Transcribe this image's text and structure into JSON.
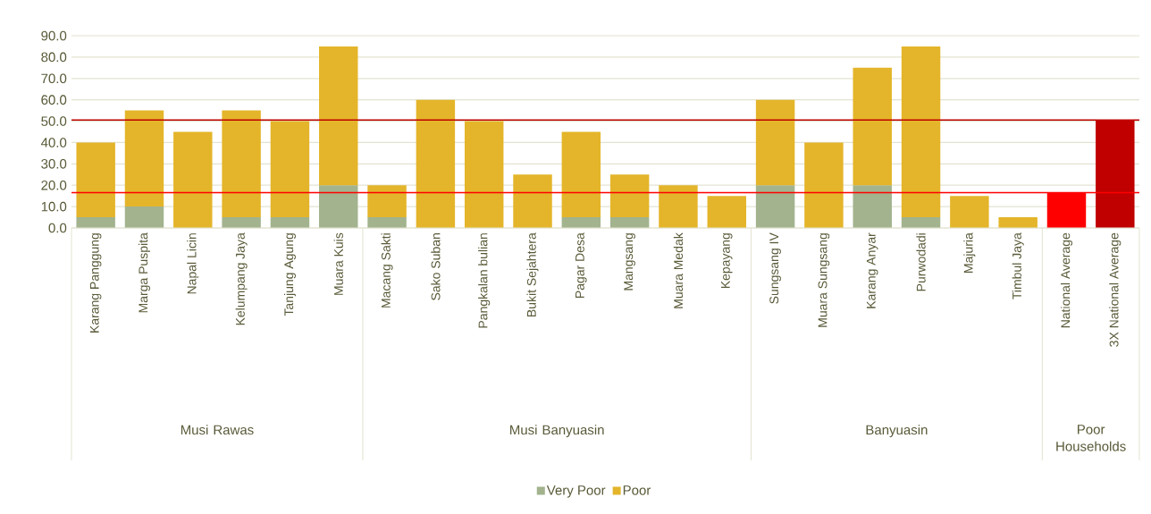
{
  "chart_data": {
    "type": "bar",
    "stacked": true,
    "categories": [
      "Karang Panggung",
      "Marga Puspita",
      "Napal Licin",
      "Kelumpang Jaya",
      "Tanjung Agung",
      "Muara Kuis",
      "Macang Sakti",
      "Sako Suban",
      "Pangkalan bulian",
      "Bukit Sejahtera",
      "Pagar Desa",
      "Mangsang",
      "Muara Medak",
      "Kepayang",
      "Sungsang IV",
      "Muara Sungsang",
      "Karang Anyar",
      "Purwodadi",
      "Majuria",
      "Timbul Jaya",
      "National Average",
      "3X National Average"
    ],
    "series": [
      {
        "name": "Very Poor",
        "color": "#a2b38e",
        "values": [
          5,
          10,
          null,
          5,
          5,
          20,
          5,
          null,
          null,
          null,
          5,
          5,
          null,
          null,
          20,
          null,
          20,
          5,
          null,
          null,
          null,
          null
        ]
      },
      {
        "name": "Poor",
        "color": "#e4b52a",
        "values": [
          35,
          45,
          45,
          50,
          45,
          65,
          15,
          60,
          50,
          25,
          40,
          20,
          20,
          15,
          40,
          40,
          55,
          80,
          15,
          5,
          null,
          null
        ]
      },
      {
        "colors": [
          null,
          null,
          null,
          null,
          null,
          null,
          null,
          null,
          null,
          null,
          null,
          null,
          null,
          null,
          null,
          null,
          null,
          null,
          null,
          null,
          "#ff0000",
          "#c00000"
        ],
        "values": [
          null,
          null,
          null,
          null,
          null,
          null,
          null,
          null,
          null,
          null,
          null,
          null,
          null,
          null,
          null,
          null,
          null,
          null,
          null,
          null,
          16.5,
          50.5
        ]
      }
    ],
    "ylim": [
      0,
      90
    ],
    "yticks": [
      {
        "value": 0,
        "label": "0.0"
      },
      {
        "value": 10,
        "label": "10.0"
      },
      {
        "value": 20,
        "label": "20.0"
      },
      {
        "value": 30,
        "label": "30.0"
      },
      {
        "value": 40,
        "label": "40.0"
      },
      {
        "value": 50,
        "label": "50.0"
      },
      {
        "value": 60,
        "label": "60.0"
      },
      {
        "value": 70,
        "label": "70.0"
      },
      {
        "value": 80,
        "label": "80.0"
      },
      {
        "value": 90,
        "label": "90.0"
      }
    ],
    "grid": "y",
    "legend": "bottom",
    "ref_lines": [
      {
        "axis": "y",
        "value": 50.5,
        "color": "#c00000"
      },
      {
        "axis": "y",
        "value": 16.5,
        "color": "#ff0000"
      }
    ],
    "annotations": [
      "Musi Rawas",
      "Musi Banyuasin",
      "Banyuasin",
      "Poor Households"
    ]
  }
}
